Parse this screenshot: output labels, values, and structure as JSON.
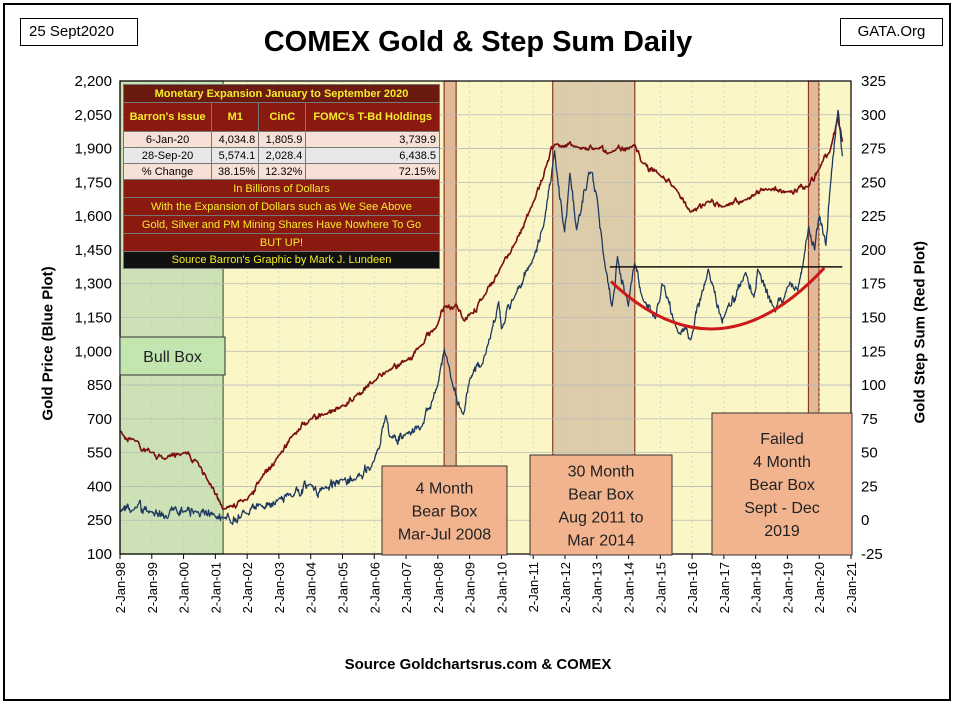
{
  "header": {
    "date": "25 Sept2020",
    "site": "GATA.Org",
    "title": "COMEX Gold & Step Sum Daily",
    "source": "Source Goldchartsrus.com & COMEX"
  },
  "axes": {
    "left_label": "Gold Price   (Blue Plot)",
    "right_label": "Gold Step Sum   (Red Plot)"
  },
  "colors": {
    "gold_line": "#1f3a60",
    "step_line": "#7a1010",
    "plot_bg": "#fbf6c6",
    "bull_box": "#c7dfb3",
    "bear_box": "#d9a486",
    "bear_box_alt": "#d7c4a5",
    "label_box": "#f2b48f",
    "trend": "#cc1a1a"
  },
  "table": {
    "title": "Monetary Expansion January to September 2020",
    "headers": [
      "Barron's Issue",
      "M1",
      "CinC",
      "FOMC's T-Bd Holdings"
    ],
    "rows": [
      [
        "6-Jan-20",
        "4,034.8",
        "1,805.9",
        "3,739.9"
      ],
      [
        "28-Sep-20",
        "5,574.1",
        "2,028.4",
        "6,438.5"
      ],
      [
        "% Change",
        "38.15%",
        "12.32%",
        "72.15%"
      ]
    ],
    "notes": [
      "In Billions of Dollars",
      "With the Expansion of Dollars such as We See Above",
      "Gold, Silver and PM Mining Shares Have Nowhere To Go",
      "BUT UP!"
    ],
    "credit": "Source Barron's   Graphic by Mark J. Lundeen"
  },
  "annotations": {
    "bull_box": "Bull Box",
    "bear_2008": [
      "4 Month",
      "Bear Box",
      "Mar-Jul 2008"
    ],
    "bear_2011": [
      "30 Month",
      "Bear Box",
      "Aug 2011 to",
      "Mar 2014"
    ],
    "bear_2019": [
      "Failed",
      "4 Month",
      "Bear Box",
      "Sept - Dec",
      "2019"
    ]
  },
  "chart_data": {
    "type": "line",
    "x_range": [
      "1998-01-02",
      "2021-01-02"
    ],
    "x_ticks": [
      "2-Jan-98",
      "2-Jan-99",
      "2-Jan-00",
      "2-Jan-01",
      "2-Jan-02",
      "2-Jan-03",
      "2-Jan-04",
      "2-Jan-05",
      "2-Jan-06",
      "2-Jan-07",
      "2-Jan-08",
      "2-Jan-09",
      "2-Jan-10",
      "2-Jan-11",
      "2-Jan-12",
      "2-Jan-13",
      "2-Jan-14",
      "2-Jan-15",
      "2-Jan-16",
      "2-Jan-17",
      "2-Jan-18",
      "2-Jan-19",
      "2-Jan-20",
      "2-Jan-21"
    ],
    "y_left": {
      "min": 100,
      "max": 2200,
      "ticks": [
        "100",
        "250",
        "400",
        "550",
        "700",
        "850",
        "1,000",
        "1,150",
        "1,300",
        "1,450",
        "1,600",
        "1,750",
        "1,900",
        "2,050",
        "2,200"
      ]
    },
    "y_right": {
      "min": -25,
      "max": 325,
      "ticks": [
        "-25",
        "0",
        "25",
        "50",
        "75",
        "100",
        "125",
        "150",
        "175",
        "200",
        "225",
        "250",
        "275",
        "300",
        "325"
      ]
    },
    "grid": true,
    "shaded_periods": [
      {
        "name": "Bull Box",
        "start": "1998-01-02",
        "end": "2001-04-01"
      },
      {
        "name": "4 Month Bear Box",
        "start": "2008-03-15",
        "end": "2008-07-31"
      },
      {
        "name": "30 Month Bear Box",
        "start": "2011-08-15",
        "end": "2014-03-15"
      },
      {
        "name": "Failed 4 Month Bear Box",
        "start": "2019-09-01",
        "end": "2019-12-31"
      }
    ],
    "resistance_level": {
      "value": 1375,
      "start": "2013-06-01",
      "end": "2020-01-15"
    },
    "series": [
      {
        "name": "Gold Price (Blue Plot)",
        "axis": "left",
        "points": [
          [
            "1998-01-02",
            290
          ],
          [
            "1998-06-01",
            295
          ],
          [
            "1999-01-02",
            288
          ],
          [
            "1999-07-01",
            258
          ],
          [
            "1999-10-01",
            310
          ],
          [
            "2000-01-02",
            288
          ],
          [
            "2000-06-01",
            285
          ],
          [
            "2001-01-02",
            268
          ],
          [
            "2001-04-01",
            260
          ],
          [
            "2002-01-02",
            280
          ],
          [
            "2002-06-01",
            320
          ],
          [
            "2003-01-02",
            345
          ],
          [
            "2003-06-01",
            355
          ],
          [
            "2004-01-02",
            410
          ],
          [
            "2004-06-01",
            390
          ],
          [
            "2005-01-02",
            428
          ],
          [
            "2005-06-01",
            430
          ],
          [
            "2006-01-02",
            515
          ],
          [
            "2006-05-15",
            715
          ],
          [
            "2006-07-01",
            620
          ],
          [
            "2007-01-02",
            635
          ],
          [
            "2007-07-01",
            665
          ],
          [
            "2008-01-02",
            850
          ],
          [
            "2008-03-17",
            1010
          ],
          [
            "2008-06-01",
            880
          ],
          [
            "2008-10-24",
            720
          ],
          [
            "2009-01-02",
            875
          ],
          [
            "2009-06-01",
            945
          ],
          [
            "2009-12-02",
            1220
          ],
          [
            "2010-01-02",
            1100
          ],
          [
            "2010-06-01",
            1240
          ],
          [
            "2011-01-02",
            1410
          ],
          [
            "2011-04-29",
            1550
          ],
          [
            "2011-09-06",
            1890
          ],
          [
            "2011-12-29",
            1530
          ],
          [
            "2012-02-28",
            1790
          ],
          [
            "2012-05-16",
            1540
          ],
          [
            "2012-10-04",
            1795
          ],
          [
            "2013-01-02",
            1690
          ],
          [
            "2013-04-15",
            1360
          ],
          [
            "2013-06-27",
            1200
          ],
          [
            "2013-08-28",
            1420
          ],
          [
            "2013-12-31",
            1200
          ],
          [
            "2014-03-14",
            1390
          ],
          [
            "2014-06-01",
            1250
          ],
          [
            "2014-11-07",
            1145
          ],
          [
            "2015-01-22",
            1300
          ],
          [
            "2015-07-24",
            1085
          ],
          [
            "2015-12-17",
            1050
          ],
          [
            "2016-07-06",
            1365
          ],
          [
            "2016-12-15",
            1125
          ],
          [
            "2017-01-02",
            1150
          ],
          [
            "2017-09-08",
            1350
          ],
          [
            "2017-12-12",
            1240
          ],
          [
            "2018-01-25",
            1365
          ],
          [
            "2018-08-16",
            1175
          ],
          [
            "2019-01-02",
            1285
          ],
          [
            "2019-05-01",
            1270
          ],
          [
            "2019-09-04",
            1555
          ],
          [
            "2019-11-12",
            1450
          ],
          [
            "2020-01-08",
            1600
          ],
          [
            "2020-03-19",
            1470
          ],
          [
            "2020-05-01",
            1700
          ],
          [
            "2020-08-06",
            2070
          ],
          [
            "2020-09-25",
            1866
          ]
        ]
      },
      {
        "name": "Gold Step Sum (Red Plot)",
        "axis": "right",
        "points": [
          [
            "1998-01-02",
            66
          ],
          [
            "1998-06-01",
            60
          ],
          [
            "1999-01-02",
            50
          ],
          [
            "1999-06-01",
            45
          ],
          [
            "2000-01-02",
            50
          ],
          [
            "2000-06-01",
            44
          ],
          [
            "2000-10-01",
            30
          ],
          [
            "2001-04-01",
            8
          ],
          [
            "2002-01-02",
            15
          ],
          [
            "2002-06-01",
            30
          ],
          [
            "2003-01-02",
            48
          ],
          [
            "2003-06-01",
            62
          ],
          [
            "2004-01-02",
            75
          ],
          [
            "2004-06-01",
            78
          ],
          [
            "2005-01-02",
            85
          ],
          [
            "2005-06-01",
            92
          ],
          [
            "2006-01-02",
            103
          ],
          [
            "2006-06-01",
            110
          ],
          [
            "2007-01-02",
            118
          ],
          [
            "2007-06-01",
            128
          ],
          [
            "2008-01-02",
            145
          ],
          [
            "2008-03-15",
            158
          ],
          [
            "2008-07-31",
            160
          ],
          [
            "2008-10-24",
            148
          ],
          [
            "2009-01-02",
            152
          ],
          [
            "2009-06-01",
            164
          ],
          [
            "2010-01-02",
            188
          ],
          [
            "2010-06-01",
            204
          ],
          [
            "2011-01-02",
            235
          ],
          [
            "2011-06-01",
            262
          ],
          [
            "2011-09-06",
            278
          ],
          [
            "2012-06-01",
            276
          ],
          [
            "2013-01-02",
            275
          ],
          [
            "2013-06-01",
            272
          ],
          [
            "2014-03-15",
            278
          ],
          [
            "2014-06-01",
            265
          ],
          [
            "2015-01-02",
            255
          ],
          [
            "2015-07-01",
            245
          ],
          [
            "2015-12-17",
            228
          ],
          [
            "2016-07-01",
            236
          ],
          [
            "2017-01-02",
            232
          ],
          [
            "2017-09-01",
            237
          ],
          [
            "2018-06-01",
            245
          ],
          [
            "2019-01-02",
            243
          ],
          [
            "2019-09-04",
            247
          ],
          [
            "2020-01-02",
            260
          ],
          [
            "2020-05-01",
            272
          ],
          [
            "2020-08-06",
            298
          ],
          [
            "2020-09-25",
            280
          ]
        ]
      }
    ]
  }
}
